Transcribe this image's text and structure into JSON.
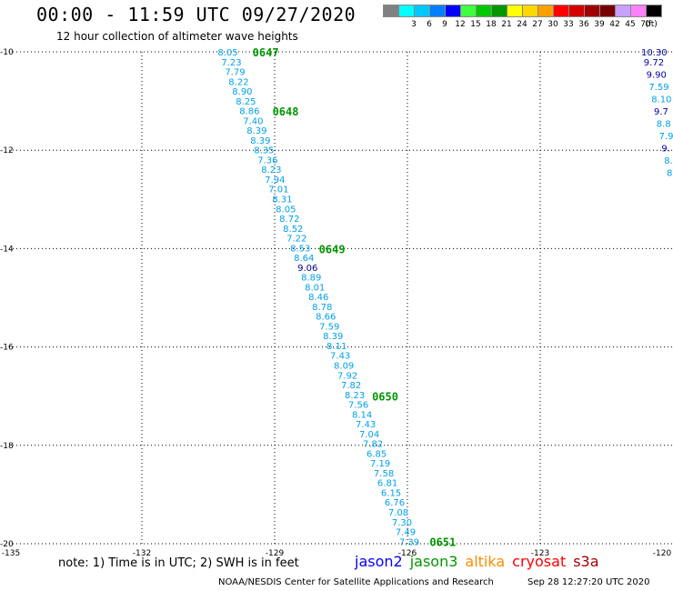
{
  "header": {
    "title": "00:00 - 11:59 UTC 09/27/2020",
    "subtitle": "12 hour collection of altimeter wave heights"
  },
  "color_scale": {
    "unit": "(ft)",
    "items": [
      {
        "label": "",
        "color": "#808080"
      },
      {
        "label": "3",
        "color": "#00ffff"
      },
      {
        "label": "6",
        "color": "#00c8ff"
      },
      {
        "label": "9",
        "color": "#0080ff"
      },
      {
        "label": "12",
        "color": "#0000ff"
      },
      {
        "label": "15",
        "color": "#40ff40"
      },
      {
        "label": "18",
        "color": "#00c800"
      },
      {
        "label": "21",
        "color": "#009600"
      },
      {
        "label": "24",
        "color": "#ffff00"
      },
      {
        "label": "27",
        "color": "#ffd700"
      },
      {
        "label": "30",
        "color": "#ffa000"
      },
      {
        "label": "33",
        "color": "#ff0000"
      },
      {
        "label": "36",
        "color": "#d20000"
      },
      {
        "label": "39",
        "color": "#a00000"
      },
      {
        "label": "42",
        "color": "#780000"
      },
      {
        "label": "45",
        "color": "#c8a0ff"
      },
      {
        "label": "70",
        "color": "#ff80ff"
      },
      {
        "label": "",
        "color": "#000000"
      }
    ]
  },
  "footer": {
    "note": "note: 1) Time is in UTC; 2) SWH is in feet",
    "satellites": [
      {
        "name": "jason2",
        "color": "#0000ff"
      },
      {
        "name": "jason3",
        "color": "#009600"
      },
      {
        "name": "altika",
        "color": "#ff8c00"
      },
      {
        "name": "cryosat",
        "color": "#ff0000"
      },
      {
        "name": "s3a",
        "color": "#a00000"
      }
    ],
    "credit": "NOAA/NESDIS Center for Satellite Applications and Research",
    "timestamp": "Sep 28 12:27:20 UTC 2020"
  },
  "chart_data": {
    "type": "scatter",
    "title": "00:00 - 11:59 UTC 09/27/2020",
    "subtitle": "12 hour collection of altimeter wave heights",
    "xlim": [
      -135,
      -120
    ],
    "ylim": [
      -20,
      -10
    ],
    "x_ticks": [
      -135,
      -132,
      -129,
      -126,
      -123,
      -120
    ],
    "x_tick_labels": [
      "-135",
      "-132",
      "-129",
      "-126",
      "-123",
      "-120"
    ],
    "y_ticks": [
      -10,
      -12,
      -14,
      -16,
      -18,
      -20
    ],
    "y_tick_labels": [
      "-10",
      "-12",
      "-14",
      "-16",
      "-18",
      "-20"
    ],
    "grid": true,
    "main_track": {
      "color": "#00a0e6",
      "lon_start": -130.0,
      "lat_start": -10.0,
      "lon_end": -125.9,
      "lat_end": -19.95,
      "values": [
        "8.05",
        "7.23",
        "7.79",
        "8.22",
        "8.90",
        "8.25",
        "8.86",
        "7.40",
        "8.39",
        "8.39",
        "8.35",
        "7.36",
        "8.23",
        "7.94",
        "7.01",
        "8.31",
        "8.05",
        "8.72",
        "8.52",
        "7.22",
        "8.53",
        "8.64",
        "9.06",
        "8.89",
        "8.01",
        "8.46",
        "8.78",
        "8.66",
        "7.59",
        "8.39",
        "8.11",
        "7.43",
        "8.09",
        "7.92",
        "7.82",
        "8.23",
        "7.56",
        "8.14",
        "7.43",
        "7.04",
        "7.82",
        "6.85",
        "7.19",
        "7.58",
        "6.81",
        "6.15",
        "6.76",
        "7.08",
        "7.30",
        "7.49",
        "7.39"
      ],
      "highlight_values": [
        "9.06"
      ],
      "highlight_color": "#000080"
    },
    "time_labels": [
      {
        "text": "0647",
        "lon": -129.5,
        "lat": -10.0
      },
      {
        "text": "0648",
        "lon": -129.05,
        "lat": -11.2
      },
      {
        "text": "0649",
        "lon": -128.0,
        "lat": -14.0
      },
      {
        "text": "0650",
        "lon": -126.8,
        "lat": -17.0
      },
      {
        "text": "0651",
        "lon": -125.5,
        "lat": -19.95
      }
    ],
    "time_label_color": "#009600",
    "edge_track": {
      "color": "#0000a0",
      "values": [
        "10.30",
        "9.72",
        "9.90",
        "7.59",
        "8.10",
        "9.7",
        "8.8",
        "7.9",
        "9.",
        "8.",
        "8"
      ],
      "lons": [
        -120.28,
        -120.16,
        -120.08,
        -120.05,
        -120.02,
        -120.0,
        -120.0,
        -120.0,
        -120.0,
        -120.0,
        -120.0
      ],
      "lats": [
        -10.0,
        -10.2,
        -10.45,
        -10.7,
        -10.95,
        -11.2,
        -11.45,
        -11.7,
        -11.95,
        -12.2,
        -12.45
      ],
      "label_colors": [
        "#0000a0",
        "#0000a0",
        "#0000a0",
        "#00a0e6",
        "#00a0e6",
        "#0000a0",
        "#00a0e6",
        "#00a0e6",
        "#0000a0",
        "#00a0e6",
        "#00a0e6"
      ]
    }
  }
}
